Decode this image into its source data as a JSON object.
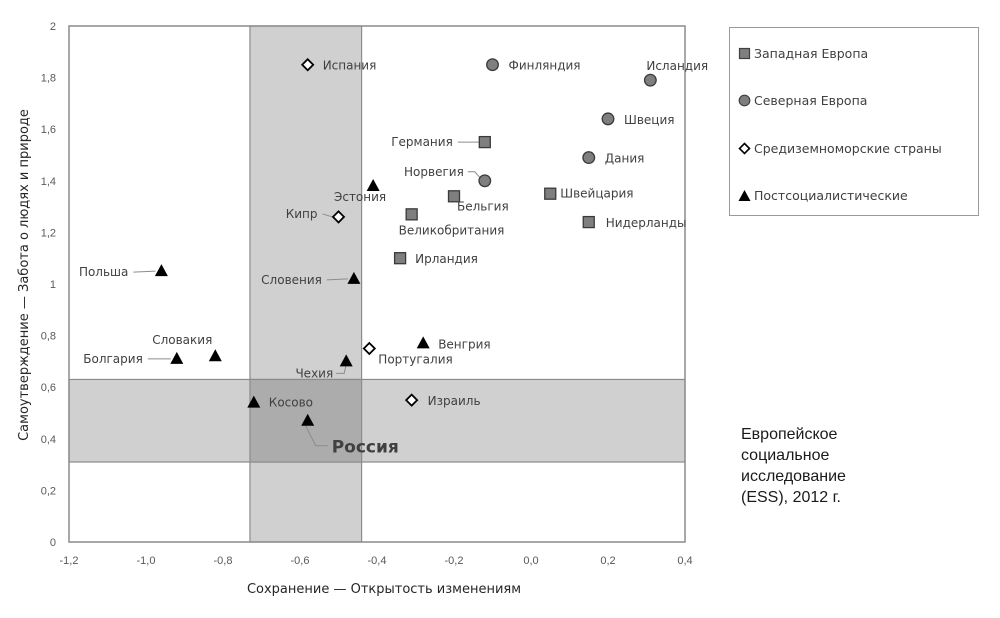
{
  "chart_data": {
    "type": "scatter",
    "xlabel": "Сохранение — Открытость изменениям",
    "ylabel": "Самоутверждение — Забота о людях и природе",
    "xlim": [
      -1.2,
      0.4
    ],
    "ylim": [
      0,
      2
    ],
    "x_ticks": [
      "-1,2",
      "-1,0",
      "-0,8",
      "-0,6",
      "-0,4",
      "-0,2",
      "0,0",
      "0,2",
      "0,4"
    ],
    "x_tick_values": [
      -1.2,
      -1.0,
      -0.8,
      -0.6,
      -0.4,
      -0.2,
      0.0,
      0.2,
      0.4
    ],
    "y_ticks": [
      "0",
      "0,2",
      "0,4",
      "0,6",
      "0,8",
      "1",
      "1,2",
      "1,4",
      "1,6",
      "1,8",
      "2"
    ],
    "y_tick_values": [
      0,
      0.2,
      0.4,
      0.6,
      0.8,
      1.0,
      1.2,
      1.4,
      1.6,
      1.8,
      2.0
    ],
    "grid": false,
    "legend_position": "right",
    "highlight_bands": {
      "x_range": [
        -0.73,
        -0.44
      ],
      "y_range": [
        0.31,
        0.63
      ],
      "band_color": "#d0d0d0",
      "overlap_color": "#acacac"
    },
    "series": [
      {
        "name": "Западная Европа",
        "marker": "square",
        "color": "#7f7f7f",
        "points": [
          {
            "label": "Германия",
            "x": -0.12,
            "y": 1.55
          },
          {
            "label": "Бельгия",
            "x": -0.2,
            "y": 1.34
          },
          {
            "label": "Швейцария",
            "x": 0.05,
            "y": 1.35
          },
          {
            "label": "Великобритания",
            "x": -0.31,
            "y": 1.27
          },
          {
            "label": "Нидерланды",
            "x": 0.15,
            "y": 1.24
          },
          {
            "label": "Ирландия",
            "x": -0.34,
            "y": 1.1
          }
        ]
      },
      {
        "name": "Северная Европа",
        "marker": "circle",
        "color": "#7f7f7f",
        "points": [
          {
            "label": "Финляндия",
            "x": -0.1,
            "y": 1.85
          },
          {
            "label": "Исландия",
            "x": 0.31,
            "y": 1.79
          },
          {
            "label": "Швеция",
            "x": 0.2,
            "y": 1.64
          },
          {
            "label": "Дания",
            "x": 0.15,
            "y": 1.49
          },
          {
            "label": "Норвегия",
            "x": -0.12,
            "y": 1.4
          }
        ]
      },
      {
        "name": "Средиземноморские страны",
        "marker": "diamond",
        "color": "#ffffff",
        "points": [
          {
            "label": "Испания",
            "x": -0.58,
            "y": 1.85
          },
          {
            "label": "Кипр",
            "x": -0.5,
            "y": 1.26
          },
          {
            "label": "Португалия",
            "x": -0.42,
            "y": 0.75
          },
          {
            "label": "Израиль",
            "x": -0.31,
            "y": 0.55
          }
        ]
      },
      {
        "name": "Постсоциалистические",
        "marker": "triangle",
        "color": "#000000",
        "points": [
          {
            "label": "Эстония",
            "x": -0.41,
            "y": 1.38
          },
          {
            "label": "Польша",
            "x": -0.96,
            "y": 1.05
          },
          {
            "label": "Словения",
            "x": -0.46,
            "y": 1.02
          },
          {
            "label": "Венгрия",
            "x": -0.28,
            "y": 0.77
          },
          {
            "label": "Словакия",
            "x": -0.82,
            "y": 0.72
          },
          {
            "label": "Болгария",
            "x": -0.92,
            "y": 0.71
          },
          {
            "label": "Чехия",
            "x": -0.48,
            "y": 0.7
          },
          {
            "label": "Косово",
            "x": -0.72,
            "y": 0.54
          },
          {
            "label": "Россия",
            "x": -0.58,
            "y": 0.47,
            "emphasis": true
          }
        ]
      }
    ],
    "annotation": [
      "Европейское",
      "социальное",
      "исследование",
      "(ESS), 2012 г."
    ]
  }
}
